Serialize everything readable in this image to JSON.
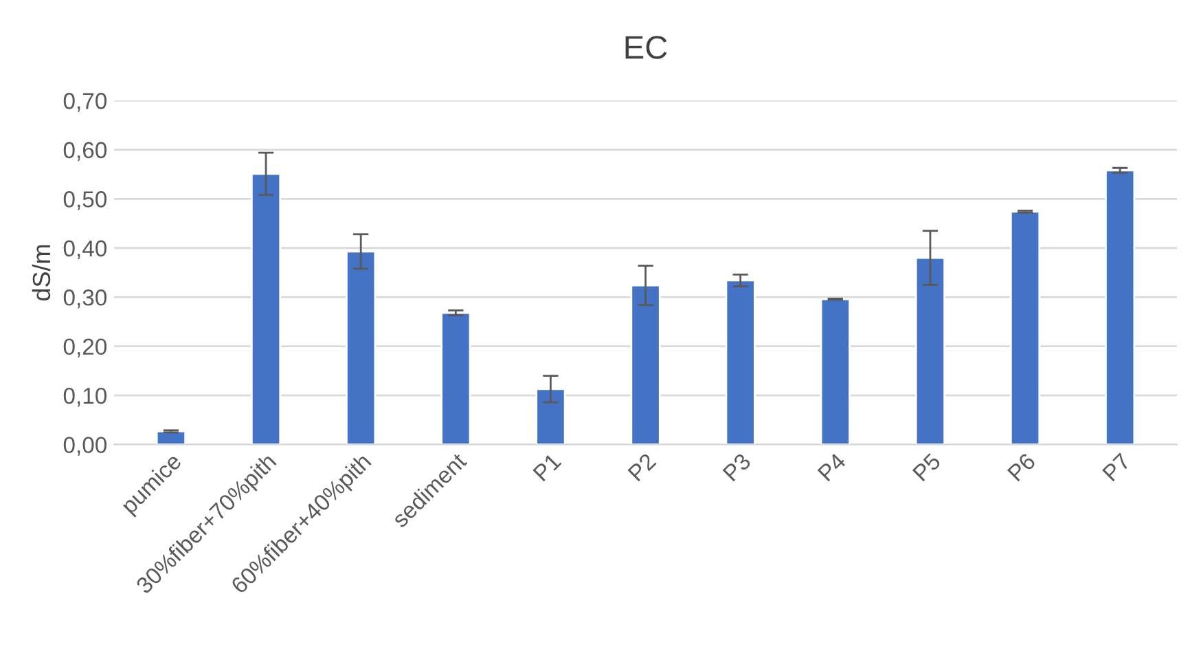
{
  "chart_data": {
    "type": "bar",
    "title": "EC",
    "ylabel": "dS/m",
    "categories": [
      "pumice",
      "30%fiber+70%pith",
      "60%fiber+40%pith",
      "sediment",
      "P1",
      "P2",
      "P3",
      "P4",
      "P5",
      "P6",
      "P7"
    ],
    "values": [
      0.027,
      0.551,
      0.393,
      0.268,
      0.113,
      0.324,
      0.334,
      0.296,
      0.38,
      0.474,
      0.558
    ],
    "errors": [
      0.002,
      0.043,
      0.035,
      0.005,
      0.027,
      0.04,
      0.012,
      0.001,
      0.055,
      0.002,
      0.005
    ],
    "color": "#4472c4",
    "ylim": [
      0,
      0.7
    ],
    "yticks": [
      {
        "value": 0,
        "label": "0,00"
      },
      {
        "value": 0.1,
        "label": "0,10"
      },
      {
        "value": 0.2,
        "label": "0,20"
      },
      {
        "value": 0.3,
        "label": "0,30"
      },
      {
        "value": 0.4,
        "label": "0,40"
      },
      {
        "value": 0.5,
        "label": "0,50"
      },
      {
        "value": 0.6,
        "label": "0,60"
      },
      {
        "value": 0.7,
        "label": "0,70"
      }
    ],
    "grid": "y"
  }
}
